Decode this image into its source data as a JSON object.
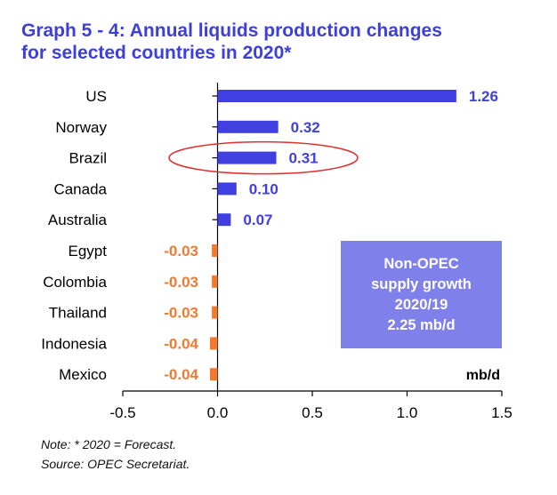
{
  "title": "Graph 5 - 4: Annual liquids production changes\nfor selected countries in 2020*",
  "callout": {
    "lines": [
      "Non-OPEC",
      "supply growth",
      "2020/19",
      "2.25 mb/d"
    ]
  },
  "notes": {
    "note": "Note: * 2020 = Forecast.",
    "source": "Source: OPEC Secretariat."
  },
  "colors": {
    "positive": "#4040e0",
    "negative": "#f07a30",
    "title": "#3c3fd9",
    "callout_bg": "#8080ea",
    "highlight_ellipse": "#e03030"
  },
  "chart_data": {
    "type": "bar",
    "orientation": "horizontal",
    "categories": [
      "US",
      "Norway",
      "Brazil",
      "Canada",
      "Australia",
      "Egypt",
      "Colombia",
      "Thailand",
      "Indonesia",
      "Mexico"
    ],
    "values": [
      1.26,
      0.32,
      0.31,
      0.1,
      0.07,
      -0.03,
      -0.03,
      -0.03,
      -0.04,
      -0.04
    ],
    "data_labels": [
      "1.26",
      "0.32",
      "0.31",
      "0.10",
      "0.07",
      "-0.03",
      "-0.03",
      "-0.03",
      "-0.04",
      "-0.04"
    ],
    "xlim": [
      -0.5,
      1.5
    ],
    "x_ticks": [
      -0.5,
      0.0,
      0.5,
      1.0,
      1.5
    ],
    "x_tick_labels": [
      "-0.5",
      "0.0",
      "0.5",
      "1.0",
      "1.5"
    ],
    "unit_label": "mb/d",
    "highlighted_category": "Brazil",
    "grid": false
  }
}
